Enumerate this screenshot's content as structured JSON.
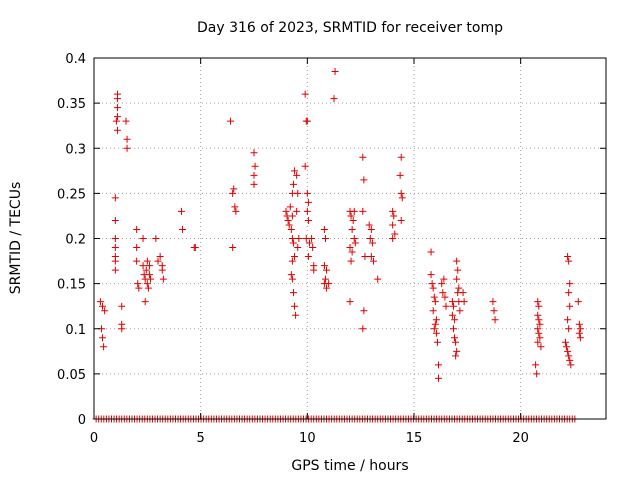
{
  "chart_data": {
    "type": "scatter",
    "title": "Day 316 of 2023, SRMTID for receiver tomp",
    "xlabel": "GPS time / hours",
    "ylabel": "SRMTID / TECUs",
    "xlim": [
      0,
      24
    ],
    "ylim": [
      0,
      0.4
    ],
    "grid": true,
    "marker": "+",
    "marker_color": "#e00000",
    "x_ticks": [
      0,
      5,
      10,
      15,
      20
    ],
    "x_tick_labels": [
      "0",
      "5",
      "10",
      "15",
      "20"
    ],
    "y_ticks": [
      0,
      0.05,
      0.1,
      0.15,
      0.2,
      0.25,
      0.3,
      0.35,
      0.4
    ],
    "y_tick_labels": [
      "0",
      "0.05",
      "0.1",
      "0.15",
      "0.2",
      "0.25",
      "0.3",
      "0.35",
      "0.4"
    ],
    "baseline": {
      "y": 0,
      "x_start": 0.1,
      "x_end": 22.6,
      "x_step": 0.12
    },
    "points": [
      [
        0.3,
        0.13
      ],
      [
        0.35,
        0.1
      ],
      [
        0.4,
        0.125
      ],
      [
        0.4,
        0.09
      ],
      [
        0.45,
        0.08
      ],
      [
        0.5,
        0.12
      ],
      [
        1.0,
        0.245
      ],
      [
        1.0,
        0.22
      ],
      [
        1.0,
        0.2
      ],
      [
        1.0,
        0.19
      ],
      [
        1.0,
        0.18
      ],
      [
        1.0,
        0.175
      ],
      [
        1.0,
        0.165
      ],
      [
        1.1,
        0.36
      ],
      [
        1.1,
        0.355
      ],
      [
        1.1,
        0.345
      ],
      [
        1.1,
        0.335
      ],
      [
        1.05,
        0.33
      ],
      [
        1.1,
        0.32
      ],
      [
        1.3,
        0.125
      ],
      [
        1.3,
        0.105
      ],
      [
        1.3,
        0.1
      ],
      [
        1.5,
        0.33
      ],
      [
        1.55,
        0.31
      ],
      [
        1.55,
        0.3
      ],
      [
        2.0,
        0.21
      ],
      [
        2.0,
        0.19
      ],
      [
        2.0,
        0.175
      ],
      [
        2.05,
        0.15
      ],
      [
        2.1,
        0.145
      ],
      [
        2.3,
        0.2
      ],
      [
        2.3,
        0.17
      ],
      [
        2.35,
        0.16
      ],
      [
        2.4,
        0.155
      ],
      [
        2.4,
        0.13
      ],
      [
        2.45,
        0.165
      ],
      [
        2.5,
        0.175
      ],
      [
        2.5,
        0.15
      ],
      [
        2.55,
        0.145
      ],
      [
        2.6,
        0.17
      ],
      [
        2.6,
        0.16
      ],
      [
        2.65,
        0.155
      ],
      [
        2.9,
        0.2
      ],
      [
        3.0,
        0.175
      ],
      [
        3.1,
        0.18
      ],
      [
        3.2,
        0.17
      ],
      [
        3.2,
        0.165
      ],
      [
        3.25,
        0.155
      ],
      [
        4.1,
        0.23
      ],
      [
        4.15,
        0.21
      ],
      [
        4.7,
        0.19
      ],
      [
        4.75,
        0.19
      ],
      [
        6.4,
        0.33
      ],
      [
        6.5,
        0.25
      ],
      [
        6.55,
        0.255
      ],
      [
        6.6,
        0.235
      ],
      [
        6.65,
        0.23
      ],
      [
        6.5,
        0.19
      ],
      [
        7.5,
        0.295
      ],
      [
        7.55,
        0.28
      ],
      [
        7.5,
        0.27
      ],
      [
        7.5,
        0.26
      ],
      [
        9.0,
        0.23
      ],
      [
        9.05,
        0.225
      ],
      [
        9.1,
        0.22
      ],
      [
        9.15,
        0.215
      ],
      [
        9.2,
        0.235
      ],
      [
        9.25,
        0.21
      ],
      [
        9.3,
        0.225
      ],
      [
        9.3,
        0.2
      ],
      [
        9.35,
        0.195
      ],
      [
        9.4,
        0.18
      ],
      [
        9.3,
        0.175
      ],
      [
        9.25,
        0.16
      ],
      [
        9.3,
        0.155
      ],
      [
        9.35,
        0.14
      ],
      [
        9.4,
        0.125
      ],
      [
        9.45,
        0.115
      ],
      [
        9.4,
        0.275
      ],
      [
        9.35,
        0.26
      ],
      [
        9.3,
        0.25
      ],
      [
        9.5,
        0.27
      ],
      [
        9.55,
        0.25
      ],
      [
        9.5,
        0.23
      ],
      [
        9.6,
        0.2
      ],
      [
        9.55,
        0.19
      ],
      [
        9.9,
        0.36
      ],
      [
        9.95,
        0.33
      ],
      [
        10.0,
        0.33
      ],
      [
        9.9,
        0.28
      ],
      [
        10.0,
        0.25
      ],
      [
        10.05,
        0.24
      ],
      [
        10.0,
        0.23
      ],
      [
        10.05,
        0.22
      ],
      [
        9.95,
        0.2
      ],
      [
        10.1,
        0.195
      ],
      [
        10.05,
        0.18
      ],
      [
        10.2,
        0.2
      ],
      [
        10.25,
        0.19
      ],
      [
        10.3,
        0.17
      ],
      [
        10.3,
        0.165
      ],
      [
        10.8,
        0.21
      ],
      [
        10.85,
        0.2
      ],
      [
        10.8,
        0.17
      ],
      [
        10.9,
        0.165
      ],
      [
        10.85,
        0.155
      ],
      [
        10.8,
        0.15
      ],
      [
        10.9,
        0.145
      ],
      [
        11.0,
        0.15
      ],
      [
        11.3,
        0.385
      ],
      [
        11.25,
        0.355
      ],
      [
        12.0,
        0.23
      ],
      [
        12.05,
        0.225
      ],
      [
        12.1,
        0.21
      ],
      [
        12.0,
        0.19
      ],
      [
        12.1,
        0.185
      ],
      [
        12.05,
        0.175
      ],
      [
        12.0,
        0.13
      ],
      [
        12.2,
        0.23
      ],
      [
        12.15,
        0.22
      ],
      [
        12.2,
        0.2
      ],
      [
        12.25,
        0.195
      ],
      [
        12.6,
        0.29
      ],
      [
        12.65,
        0.265
      ],
      [
        12.6,
        0.23
      ],
      [
        12.7,
        0.18
      ],
      [
        12.65,
        0.12
      ],
      [
        12.6,
        0.1
      ],
      [
        12.9,
        0.215
      ],
      [
        13.0,
        0.21
      ],
      [
        12.95,
        0.2
      ],
      [
        13.05,
        0.195
      ],
      [
        13.0,
        0.18
      ],
      [
        13.1,
        0.175
      ],
      [
        13.3,
        0.155
      ],
      [
        14.0,
        0.23
      ],
      [
        14.05,
        0.225
      ],
      [
        14.0,
        0.215
      ],
      [
        14.1,
        0.205
      ],
      [
        14.0,
        0.2
      ],
      [
        14.4,
        0.29
      ],
      [
        14.35,
        0.27
      ],
      [
        14.4,
        0.25
      ],
      [
        14.45,
        0.245
      ],
      [
        14.4,
        0.22
      ],
      [
        15.8,
        0.185
      ],
      [
        15.8,
        0.16
      ],
      [
        15.85,
        0.15
      ],
      [
        15.9,
        0.145
      ],
      [
        15.95,
        0.135
      ],
      [
        16.0,
        0.13
      ],
      [
        15.9,
        0.12
      ],
      [
        16.05,
        0.11
      ],
      [
        16.0,
        0.105
      ],
      [
        15.95,
        0.1
      ],
      [
        16.05,
        0.095
      ],
      [
        16.1,
        0.085
      ],
      [
        16.15,
        0.06
      ],
      [
        16.15,
        0.045
      ],
      [
        16.3,
        0.15
      ],
      [
        16.35,
        0.14
      ],
      [
        16.4,
        0.155
      ],
      [
        16.45,
        0.135
      ],
      [
        16.5,
        0.125
      ],
      [
        16.8,
        0.13
      ],
      [
        16.85,
        0.125
      ],
      [
        16.8,
        0.115
      ],
      [
        16.9,
        0.11
      ],
      [
        16.85,
        0.1
      ],
      [
        16.9,
        0.09
      ],
      [
        16.95,
        0.085
      ],
      [
        17.0,
        0.075
      ],
      [
        16.95,
        0.07
      ],
      [
        17.0,
        0.175
      ],
      [
        17.05,
        0.165
      ],
      [
        17.0,
        0.155
      ],
      [
        17.1,
        0.145
      ],
      [
        17.05,
        0.14
      ],
      [
        17.1,
        0.13
      ],
      [
        17.15,
        0.12
      ],
      [
        17.3,
        0.14
      ],
      [
        17.35,
        0.13
      ],
      [
        18.7,
        0.13
      ],
      [
        18.75,
        0.12
      ],
      [
        18.8,
        0.11
      ],
      [
        20.7,
        0.06
      ],
      [
        20.75,
        0.05
      ],
      [
        20.8,
        0.13
      ],
      [
        20.85,
        0.125
      ],
      [
        20.8,
        0.115
      ],
      [
        20.85,
        0.11
      ],
      [
        20.9,
        0.105
      ],
      [
        20.8,
        0.1
      ],
      [
        20.85,
        0.095
      ],
      [
        20.9,
        0.09
      ],
      [
        20.8,
        0.085
      ],
      [
        20.95,
        0.08
      ],
      [
        22.2,
        0.18
      ],
      [
        22.25,
        0.175
      ],
      [
        22.3,
        0.15
      ],
      [
        22.25,
        0.14
      ],
      [
        22.3,
        0.125
      ],
      [
        22.2,
        0.11
      ],
      [
        22.25,
        0.1
      ],
      [
        22.1,
        0.085
      ],
      [
        22.15,
        0.08
      ],
      [
        22.2,
        0.075
      ],
      [
        22.25,
        0.07
      ],
      [
        22.3,
        0.065
      ],
      [
        22.35,
        0.06
      ],
      [
        22.7,
        0.13
      ],
      [
        22.75,
        0.105
      ],
      [
        22.8,
        0.1
      ],
      [
        22.75,
        0.095
      ],
      [
        22.8,
        0.09
      ]
    ]
  }
}
